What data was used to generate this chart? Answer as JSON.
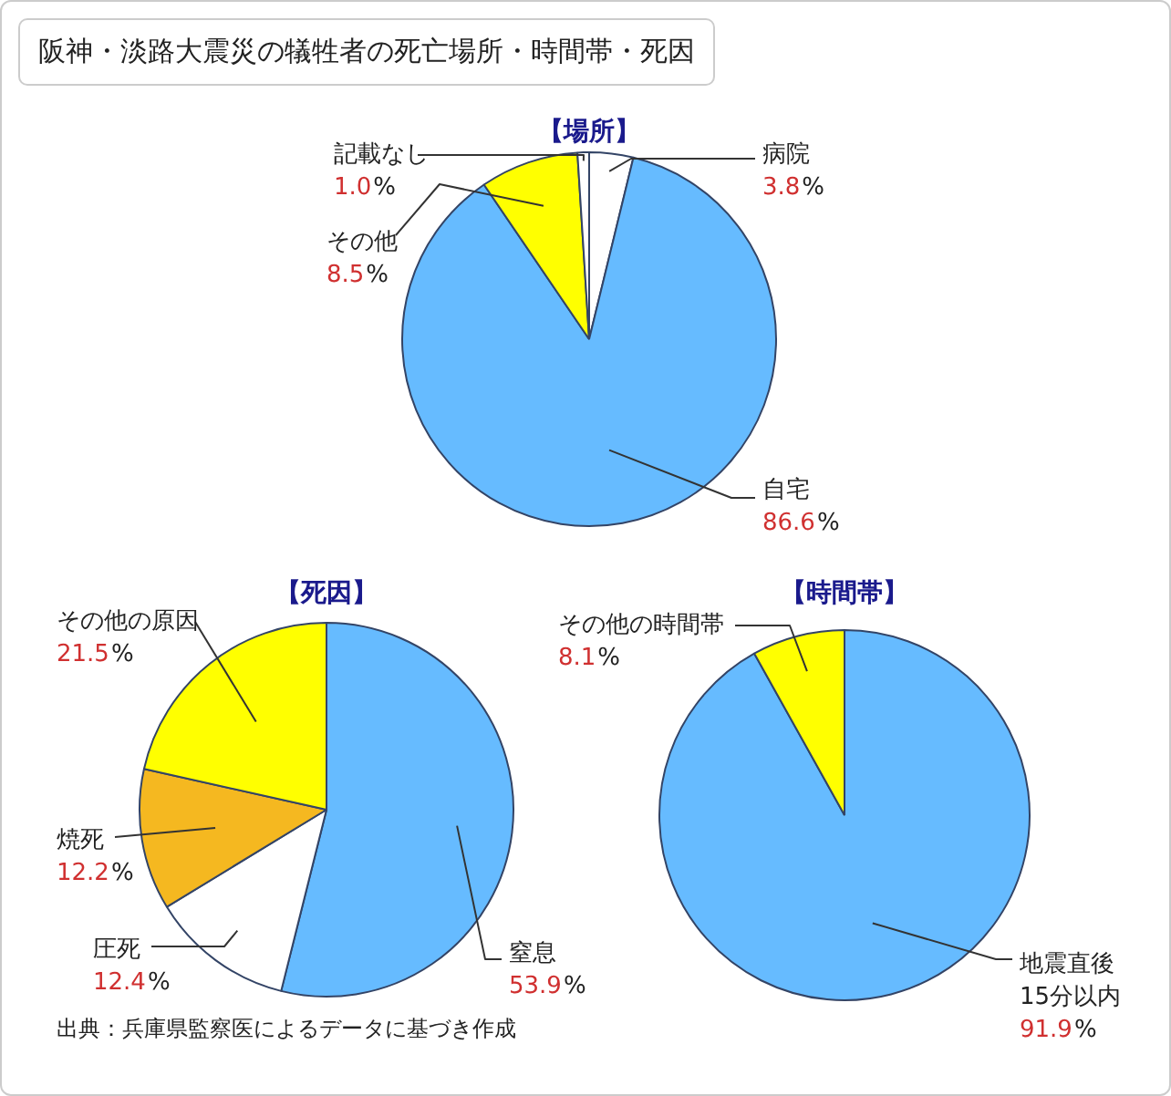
{
  "chart_data": [
    {
      "type": "pie",
      "title": "【場所】",
      "categories": [
        "病院",
        "自宅",
        "その他",
        "記載なし"
      ],
      "values": [
        3.8,
        86.6,
        8.5,
        1.0
      ],
      "colors": [
        "#ffffff",
        "#66bbff",
        "#ffff00",
        "#ffffff"
      ],
      "value_labels": [
        "3.8%",
        "86.6%",
        "8.5%",
        "1.0%"
      ],
      "legend": false,
      "annotations": [
        "阪神・淡路大震災の犠牲者の死亡場所・時間帯・死因"
      ]
    },
    {
      "type": "pie",
      "title": "【死因】",
      "categories": [
        "窒息",
        "圧死",
        "焼死",
        "その他の原因"
      ],
      "values": [
        53.9,
        12.4,
        12.2,
        21.5
      ],
      "colors": [
        "#66bbff",
        "#ffffff",
        "#f5b820",
        "#ffff00"
      ],
      "value_labels": [
        "53.9%",
        "12.4%",
        "12.2%",
        "21.5%"
      ],
      "legend": false,
      "annotations": [
        "出典：兵庫県監察医によるデータに基づき作成"
      ]
    },
    {
      "type": "pie",
      "title": "【時間帯】",
      "categories": [
        "地震直後\n15分以内",
        "その他の時間帯"
      ],
      "values": [
        91.9,
        8.1
      ],
      "colors": [
        "#66bbff",
        "#ffff00"
      ],
      "value_labels": [
        "91.9%",
        "8.1%"
      ],
      "legend": false
    }
  ]
}
